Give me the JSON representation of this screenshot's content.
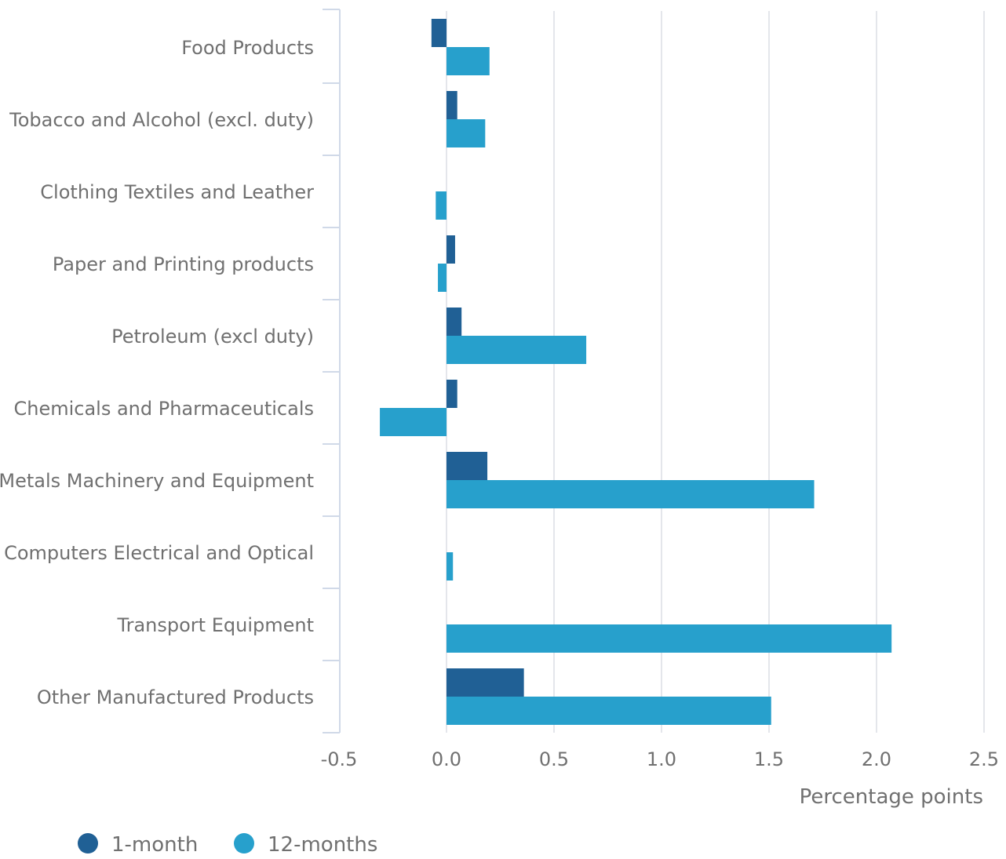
{
  "chart_data": {
    "type": "bar",
    "orientation": "horizontal",
    "categories": [
      "Food Products",
      "Tobacco and Alcohol (excl. duty)",
      "Clothing Textiles and Leather",
      "Paper and Printing products",
      "Petroleum (excl duty)",
      "Chemicals and Pharmaceuticals",
      "Metals Machinery and Equipment",
      "Computers Electrical and Optical",
      "Transport Equipment",
      "Other Manufactured Products"
    ],
    "series": [
      {
        "name": "1-month",
        "color": "#206095",
        "values": [
          -0.07,
          0.05,
          0.0,
          0.04,
          0.07,
          0.05,
          0.19,
          0.0,
          0.0,
          0.36
        ]
      },
      {
        "name": "12-months",
        "color": "#27a0cc",
        "values": [
          0.2,
          0.18,
          -0.05,
          -0.04,
          0.65,
          -0.31,
          1.71,
          0.03,
          2.07,
          1.51
        ]
      }
    ],
    "xlabel": "Percentage points",
    "xlim": [
      -0.5,
      2.5
    ],
    "xticks": [
      -0.5,
      0.0,
      0.5,
      1.0,
      1.5,
      2.0,
      2.5
    ],
    "xtick_labels": [
      "-0.5",
      "0.0",
      "0.5",
      "1.0",
      "1.5",
      "2.0",
      "2.5"
    ],
    "grid": true,
    "legend_position": "bottom-left",
    "colors": {
      "axis": "#d0d9e8",
      "grid": "#e4e6eb",
      "text": "#707070"
    }
  }
}
